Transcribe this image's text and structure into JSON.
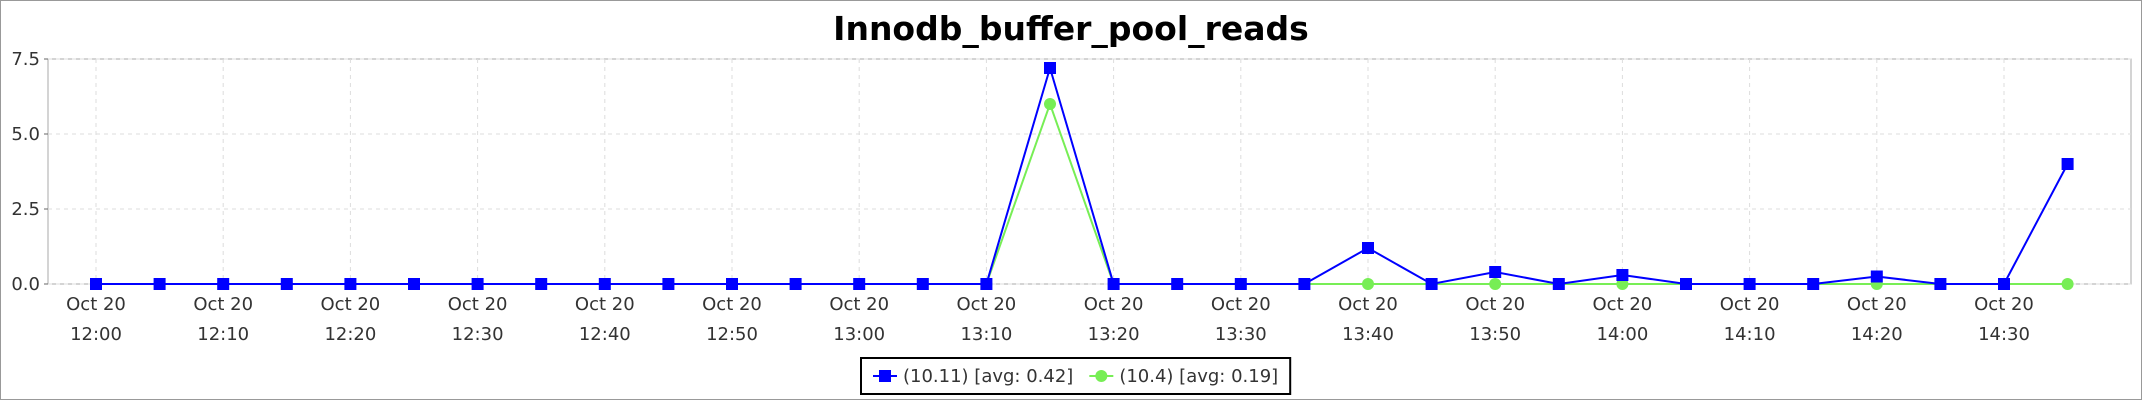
{
  "chart_data": {
    "type": "line",
    "title": "Innodb_buffer_pool_reads",
    "categories": [
      "Oct 20 12:00",
      null,
      "Oct 20 12:10",
      null,
      "Oct 20 12:20",
      null,
      "Oct 20 12:30",
      null,
      "Oct 20 12:40",
      null,
      "Oct 20 12:50",
      null,
      "Oct 20 13:00",
      null,
      "Oct 20 13:10",
      null,
      "Oct 20 13:20",
      null,
      "Oct 20 13:30",
      null,
      "Oct 20 13:40",
      null,
      "Oct 20 13:50",
      null,
      "Oct 20 14:00",
      null,
      "Oct 20 14:10",
      null,
      "Oct 20 14:20",
      null,
      "Oct 20 14:30",
      null
    ],
    "series": [
      {
        "name": "(10.11) [avg: 0.42]",
        "color": "#0000ff",
        "marker": "square",
        "values": [
          0,
          0,
          0,
          0,
          0,
          0,
          0,
          0,
          0,
          0,
          0,
          0,
          0,
          0,
          0,
          7.2,
          0,
          0,
          0,
          0,
          1.2,
          0,
          0.4,
          0,
          0.3,
          0,
          0,
          0,
          0.25,
          0,
          0,
          4.0
        ]
      },
      {
        "name": "(10.4) [avg: 0.19]",
        "color": "#77ee55",
        "marker": "circle",
        "values": [
          0,
          0,
          0,
          0,
          0,
          0,
          0,
          0,
          0,
          0,
          0,
          0,
          0,
          0,
          0,
          6.0,
          0,
          0,
          0,
          0,
          0,
          0,
          0,
          0,
          0,
          0,
          0,
          0,
          0,
          0,
          0,
          0
        ]
      }
    ],
    "ylim": [
      0,
      7.5
    ],
    "yticks": [
      {
        "value": 0,
        "label": "0.0"
      },
      {
        "value": 2.5,
        "label": "2.5"
      },
      {
        "value": 5,
        "label": "5.0"
      },
      7.5
    ],
    "grid": true,
    "legend": "bottom"
  }
}
